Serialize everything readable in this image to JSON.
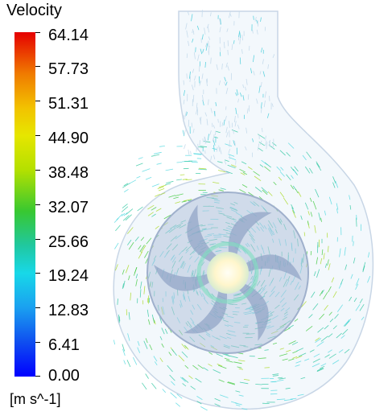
{
  "legend": {
    "title": "Velocity",
    "units": "[m s^-1]",
    "ticks": [
      "64.14",
      "57.73",
      "51.31",
      "44.90",
      "38.48",
      "32.07",
      "25.66",
      "19.24",
      "12.83",
      "6.41",
      "0.00"
    ]
  },
  "colors": {
    "max": "#e50000",
    "mid_high": "#f2c200",
    "mid": "#38c831",
    "mid_low": "#18d8e8",
    "min": "#0000ff",
    "impeller": "#a9b8d3",
    "hub": "#fff8e0"
  }
}
